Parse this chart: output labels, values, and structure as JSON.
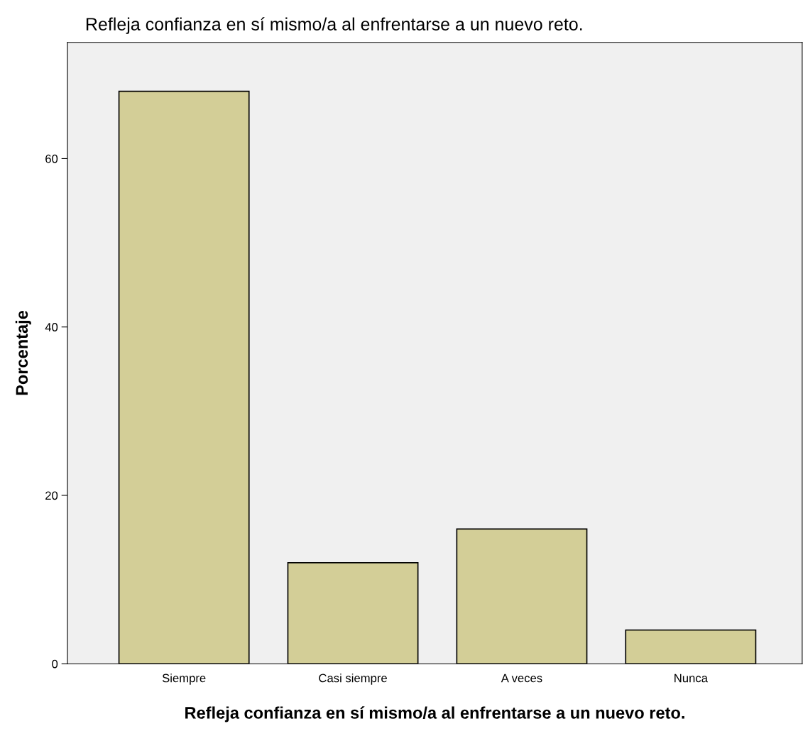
{
  "chart_data": {
    "type": "bar",
    "title": "Refleja confianza en sí mismo/a al enfrentarse a un nuevo reto.",
    "xlabel": "Refleja confianza en sí mismo/a al enfrentarse a un nuevo reto.",
    "ylabel": "Porcentaje",
    "categories": [
      "Siempre",
      "Casi siempre",
      "A veces",
      "Nunca"
    ],
    "values": [
      68,
      12,
      16,
      4
    ],
    "color": "#d3ce97",
    "ylim": [
      0,
      73.8
    ],
    "yticks": [
      0,
      20,
      40,
      60
    ],
    "grid": false
  }
}
